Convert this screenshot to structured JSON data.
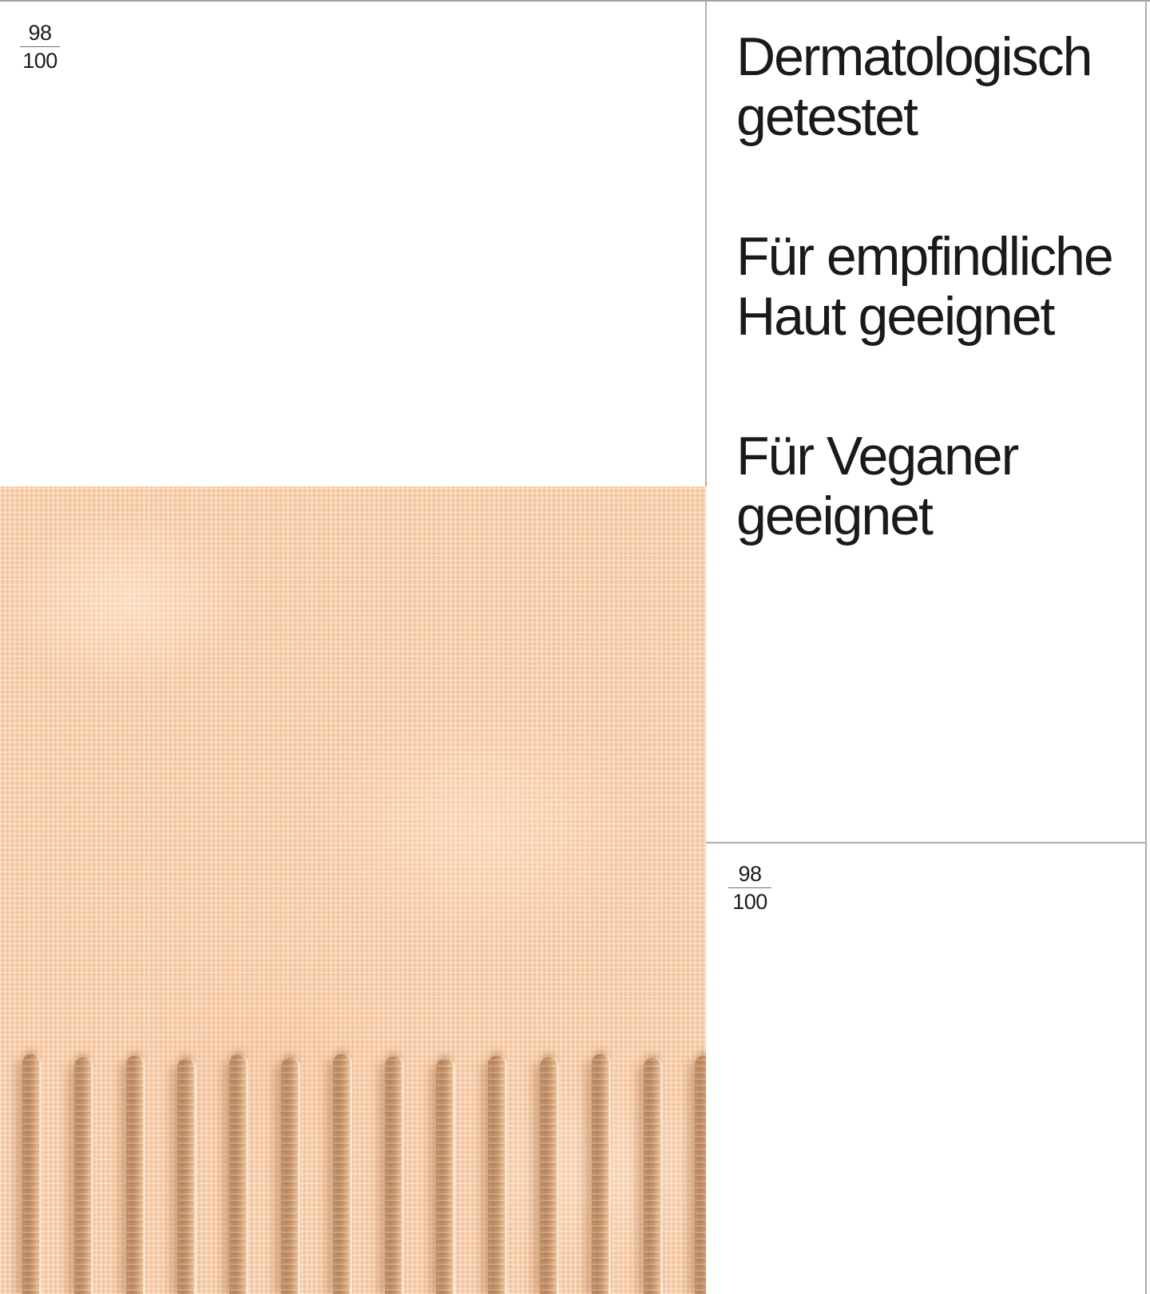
{
  "scores": {
    "top_left": {
      "numerator": "98",
      "denominator": "100"
    },
    "bottom_right": {
      "numerator": "98",
      "denominator": "100"
    }
  },
  "claims": [
    "Dermatologisch getestet",
    "Für empfindliche Haut geeignet",
    "Für Veganer geeignet"
  ],
  "swatch_colors": {
    "base": "#f9cda9",
    "groove": "#bf8c65",
    "highlight": "#fde3cb"
  },
  "ui_colors": {
    "border": "#b3aea9",
    "text": "#1a1a1a"
  }
}
